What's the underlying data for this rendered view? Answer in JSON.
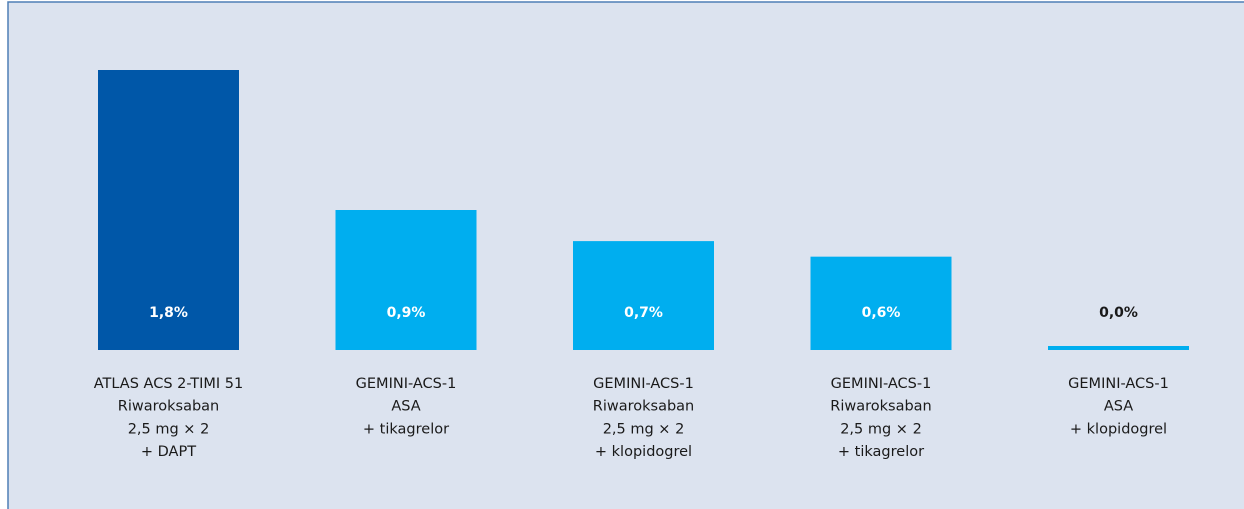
{
  "chart_data": {
    "type": "bar",
    "categories": [
      [
        "ATLAS ACS 2-TIMI 51",
        "Riwaroksaban",
        "2,5 mg × 2",
        "+ DAPT"
      ],
      [
        "GEMINI-ACS-1",
        "ASA",
        "+ tikagrelor"
      ],
      [
        "GEMINI-ACS-1",
        "Riwaroksaban",
        "2,5 mg × 2",
        "+ klopidogrel"
      ],
      [
        "GEMINI-ACS-1",
        "Riwaroksaban",
        "2,5 mg × 2",
        "+ tikagrelor"
      ],
      [
        "GEMINI-ACS-1",
        "ASA",
        "+ klopidogrel"
      ]
    ],
    "values": [
      1.8,
      0.9,
      0.7,
      0.6,
      0.0
    ],
    "value_labels": [
      "1,8%",
      "0,9%",
      "0,7%",
      "0,6%",
      "0,0%"
    ],
    "colors": [
      "#0057a8",
      "#00aeef",
      "#00aeef",
      "#00aeef",
      "#00aeef"
    ]
  }
}
